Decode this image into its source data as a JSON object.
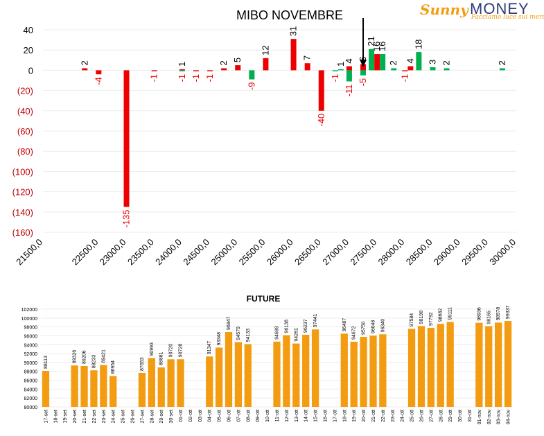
{
  "logo": {
    "brand_a": "Sunny",
    "brand_b": "MONEY",
    "tagline": "Facciamo luce sui mercati"
  },
  "colors": {
    "red": "#ee0000",
    "green": "#00b050",
    "orange": "#f39c12",
    "axis_red": "#c00000"
  },
  "chart_data": [
    {
      "type": "bar",
      "title": "MIBO NOVEMBRE",
      "ylim": [
        -160,
        40
      ],
      "yticks": [
        {
          "v": 40,
          "label": "40"
        },
        {
          "v": 20,
          "label": "20"
        },
        {
          "v": 0,
          "label": "0"
        },
        {
          "v": -20,
          "label": "(20)"
        },
        {
          "v": -40,
          "label": "(40)"
        },
        {
          "v": -60,
          "label": "(60)"
        },
        {
          "v": -80,
          "label": "(80)"
        },
        {
          "v": -100,
          "label": "(100)"
        },
        {
          "v": -120,
          "label": "(120)"
        },
        {
          "v": -140,
          "label": "(140)"
        },
        {
          "v": -160,
          "label": "(160)"
        }
      ],
      "xlim": [
        21500,
        30000
      ],
      "xticks": [
        {
          "v": 21500,
          "label": "21500,0"
        },
        {
          "v": 22500,
          "label": "22500,0"
        },
        {
          "v": 23000,
          "label": "23000,0"
        },
        {
          "v": 23500,
          "label": "23500,0"
        },
        {
          "v": 24000,
          "label": "24000,0"
        },
        {
          "v": 24500,
          "label": "24500,0"
        },
        {
          "v": 25000,
          "label": "25000,0"
        },
        {
          "v": 25500,
          "label": "25500,0"
        },
        {
          "v": 26000,
          "label": "26000,0"
        },
        {
          "v": 26500,
          "label": "26500,0"
        },
        {
          "v": 27000,
          "label": "27000,0"
        },
        {
          "v": 27500,
          "label": "27500,0"
        },
        {
          "v": 28000,
          "label": "28000,0"
        },
        {
          "v": 28500,
          "label": "28500,0"
        },
        {
          "v": 29000,
          "label": "29000,0"
        },
        {
          "v": 29500,
          "label": "29500,0"
        },
        {
          "v": 30000,
          "label": "30000,0"
        }
      ],
      "arrow_x": 27250,
      "series": [
        {
          "color": "#ee0000",
          "points": [
            {
              "x": 22250,
              "y": 2,
              "label": "2"
            },
            {
              "x": 22500,
              "y": -4,
              "label": "-4"
            },
            {
              "x": 23000,
              "y": -135,
              "label": "-135"
            },
            {
              "x": 23500,
              "y": -1,
              "label": "-1"
            },
            {
              "x": 24000,
              "y": 1,
              "label": "1"
            },
            {
              "x": 24250,
              "y": -1,
              "label": "-1"
            },
            {
              "x": 24500,
              "y": -1,
              "label": "-1"
            },
            {
              "x": 24750,
              "y": 2,
              "label": "2"
            },
            {
              "x": 25000,
              "y": 5,
              "label": "5"
            },
            {
              "x": 25500,
              "y": 12,
              "label": "12"
            },
            {
              "x": 26000,
              "y": 31,
              "label": "31"
            },
            {
              "x": 26250,
              "y": 7,
              "label": "7"
            },
            {
              "x": 26500,
              "y": -40,
              "label": "-40"
            },
            {
              "x": 27000,
              "y": 4,
              "label": "4"
            },
            {
              "x": 27250,
              "y": 6,
              "label": "6"
            },
            {
              "x": 27500,
              "y": 16,
              "label": "16"
            },
            {
              "x": 28000,
              "y": -1,
              "label": "-1"
            },
            {
              "x": 28100,
              "y": 4,
              "label": "4"
            }
          ]
        },
        {
          "color": "#00b050",
          "points": [
            {
              "x": 24000,
              "y": -1,
              "label": "-1"
            },
            {
              "x": 25250,
              "y": -9,
              "label": "-9"
            },
            {
              "x": 26750,
              "y": -1,
              "label": "-1"
            },
            {
              "x": 26850,
              "y": 1,
              "label": "1"
            },
            {
              "x": 27000,
              "y": -11,
              "label": "-11"
            },
            {
              "x": 27250,
              "y": -5,
              "label": "-5"
            },
            {
              "x": 27400,
              "y": 21,
              "label": "21"
            },
            {
              "x": 27600,
              "y": 16,
              "label": "16"
            },
            {
              "x": 27800,
              "y": 2,
              "label": "2"
            },
            {
              "x": 28250,
              "y": 18,
              "label": "18"
            },
            {
              "x": 28500,
              "y": 3,
              "label": "3"
            },
            {
              "x": 28750,
              "y": 2,
              "label": "2"
            },
            {
              "x": 29750,
              "y": 2,
              "label": "2"
            }
          ]
        }
      ]
    },
    {
      "type": "bar",
      "title": "FUTURE",
      "ylim": [
        80000,
        102000
      ],
      "yticks": [
        80000,
        82000,
        84000,
        86000,
        88000,
        90000,
        92000,
        94000,
        96000,
        98000,
        100000,
        102000
      ],
      "categories": [
        "17-set",
        "18-set",
        "19-set",
        "20-set",
        "21-set",
        "22-set",
        "23-set",
        "24-set",
        "25-set",
        "26-set",
        "27-set",
        "28-set",
        "29-set",
        "30-set",
        "01-ott",
        "02-ott",
        "03-ott",
        "04-ott",
        "05-ott",
        "06-ott",
        "07-ott",
        "08-ott",
        "09-ott",
        "10-ott",
        "11-ott",
        "12-ott",
        "13-ott",
        "14-ott",
        "15-ott",
        "16-ott",
        "17-ott",
        "18-ott",
        "19-ott",
        "20-ott",
        "21-ott",
        "22-ott",
        "23-ott",
        "24-ott",
        "25-ott",
        "26-ott",
        "27-ott",
        "28-ott",
        "29-ott",
        "30-ott",
        "31-ott",
        "01-nov",
        "02-nov",
        "03-nov",
        "04-nov"
      ],
      "values": [
        88113,
        null,
        null,
        89326,
        89206,
        88233,
        89421,
        86954,
        null,
        null,
        87653,
        90993,
        88881,
        90720,
        90728,
        null,
        null,
        91347,
        93348,
        96847,
        94579,
        94133,
        null,
        null,
        94689,
        96138,
        94261,
        96237,
        97441,
        null,
        null,
        96487,
        94672,
        95750,
        96048,
        96340,
        null,
        null,
        97584,
        98198,
        97792,
        98682,
        99111,
        null,
        null,
        98936,
        98165,
        98978,
        99337
      ],
      "labels": [
        "88113",
        "",
        "",
        "89326",
        "89206",
        "88233",
        "89421",
        "86954",
        "",
        "",
        "87653",
        "90993",
        "88881",
        "90720",
        "90728",
        "",
        "",
        "91347",
        "93348",
        "96847",
        "94579",
        "94133",
        "",
        "",
        "94689",
        "96138",
        "94261",
        "96237",
        "97441",
        "",
        "",
        "96487",
        "94672",
        "95750",
        "96048",
        "96340",
        "",
        "",
        "97584",
        "98198",
        "97792",
        "98682",
        "99111",
        "",
        "",
        "98936",
        "98165",
        "98978",
        "99337"
      ],
      "color": "#f39c12"
    }
  ]
}
